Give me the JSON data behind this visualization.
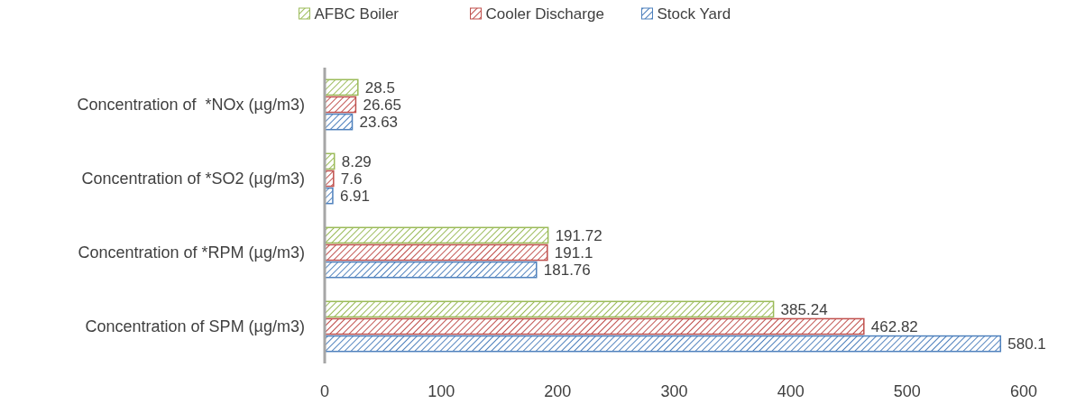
{
  "chart_data": {
    "type": "bar",
    "orientation": "horizontal",
    "categories": [
      "Concentration of  *NOx (µg/m3)",
      "Concentration of *SO2 (µg/m3)",
      "Concentration of *RPM (µg/m3)",
      "Concentration of SPM (µg/m3)"
    ],
    "series": [
      {
        "name": "AFBC Boiler",
        "color": "#9bbb59",
        "values": [
          28.5,
          8.29,
          191.72,
          385.24
        ]
      },
      {
        "name": "Cooler Discharge",
        "color": "#c0504d",
        "values": [
          26.65,
          7.6,
          191.1,
          462.82
        ]
      },
      {
        "name": "Stock Yard",
        "color": "#4f81bd",
        "values": [
          23.63,
          6.91,
          181.76,
          580.1
        ]
      }
    ],
    "xlim": [
      0,
      600
    ],
    "xticks": [
      0,
      100,
      200,
      300,
      400,
      500,
      600
    ],
    "grid": false,
    "legend": "top",
    "data_labels": true
  }
}
